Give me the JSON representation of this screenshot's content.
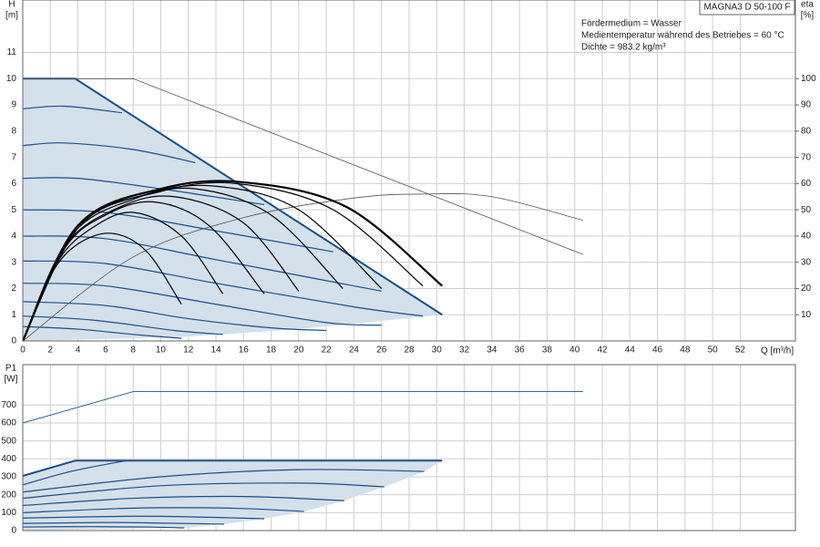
{
  "chart_data": [
    {
      "type": "line",
      "model": "MAGNA3 D 50-100 F",
      "notes": [
        "Fördermedium = Wasser",
        "Medientemperatur während des Betriebes = 60 °C",
        "Dichte = 983.2 kg/m³"
      ],
      "ylabel": "H",
      "yunit": "[m]",
      "y2label": "eta",
      "y2unit": "[%]",
      "xlabel": "Q [m³/h]",
      "xlim": [
        0,
        56
      ],
      "xticks": [
        0,
        2,
        4,
        6,
        8,
        10,
        12,
        14,
        16,
        18,
        20,
        22,
        24,
        26,
        28,
        30,
        32,
        34,
        36,
        38,
        40,
        42,
        44,
        46,
        48,
        50,
        52
      ],
      "ylim": [
        0,
        13
      ],
      "yticks": [
        0,
        1,
        2,
        3,
        4,
        5,
        6,
        7,
        8,
        9,
        10,
        11
      ],
      "y2lim": [
        0,
        130
      ],
      "y2ticks": [
        10,
        20,
        30,
        40,
        50,
        60,
        70,
        80,
        90,
        100
      ],
      "grid": true,
      "areas": [
        {
          "color": "#d4e0ea",
          "x": [
            0,
            3.8,
            30.4,
            20,
            11.5,
            0
          ],
          "values": [
            10,
            10,
            1,
            0.45,
            0.15,
            0
          ]
        }
      ],
      "series": [
        {
          "color": "#1a4f8a",
          "linewidth": 1.2,
          "smooth": true,
          "x": [
            0,
            3,
            7.2
          ],
          "values": [
            8.85,
            8.95,
            8.7
          ]
        },
        {
          "color": "#1a4f8a",
          "linewidth": 1.2,
          "smooth": true,
          "x": [
            0,
            3,
            8,
            12.5
          ],
          "values": [
            7.45,
            7.55,
            7.3,
            6.8
          ]
        },
        {
          "color": "#1a4f8a",
          "linewidth": 1.2,
          "smooth": true,
          "x": [
            0,
            4,
            10,
            17.5
          ],
          "values": [
            6.2,
            6.2,
            5.8,
            5.2
          ]
        },
        {
          "color": "#1a4f8a",
          "linewidth": 1.2,
          "smooth": true,
          "x": [
            0,
            6,
            14,
            22.5
          ],
          "values": [
            5.0,
            4.9,
            4.2,
            3.4
          ]
        },
        {
          "color": "#1a4f8a",
          "linewidth": 1.2,
          "smooth": true,
          "x": [
            0,
            6,
            14,
            26
          ],
          "values": [
            4.0,
            3.9,
            3.1,
            1.9
          ]
        },
        {
          "color": "#1a4f8a",
          "linewidth": 1.2,
          "smooth": true,
          "x": [
            0,
            6,
            14,
            24,
            29
          ],
          "values": [
            3.05,
            2.95,
            2.2,
            1.3,
            0.95
          ]
        },
        {
          "color": "#1a4f8a",
          "linewidth": 1.2,
          "smooth": true,
          "x": [
            0,
            6,
            14,
            22,
            26
          ],
          "values": [
            2.2,
            2.1,
            1.4,
            0.7,
            0.6
          ]
        },
        {
          "color": "#1a4f8a",
          "linewidth": 1.2,
          "smooth": true,
          "x": [
            0,
            6,
            12,
            18,
            22
          ],
          "values": [
            1.5,
            1.35,
            0.85,
            0.5,
            0.4
          ]
        },
        {
          "color": "#1a4f8a",
          "linewidth": 1.2,
          "smooth": true,
          "x": [
            0,
            5,
            11,
            14.5
          ],
          "values": [
            0.95,
            0.8,
            0.4,
            0.25
          ]
        },
        {
          "color": "#1a4f8a",
          "linewidth": 1.2,
          "smooth": true,
          "x": [
            0,
            4,
            8,
            11.5
          ],
          "values": [
            0.55,
            0.45,
            0.25,
            0.1
          ]
        },
        {
          "color": "#1a4f8a",
          "linewidth": 2,
          "smooth": false,
          "x": [
            0,
            3.8,
            30.4
          ],
          "values": [
            10,
            10,
            1
          ]
        },
        {
          "color": "#555555",
          "linewidth": 0.8,
          "smooth": false,
          "x": [
            0,
            8,
            40.6
          ],
          "values": [
            10,
            10,
            3.3
          ]
        },
        {
          "color": "#555555",
          "linewidth": 0.8,
          "smooth": true,
          "axis": "y2",
          "x": [
            0,
            8,
            16,
            24,
            29,
            34,
            40.6
          ],
          "values": [
            0,
            32,
            47,
            54.5,
            56,
            55,
            46
          ]
        },
        {
          "color": "#000000",
          "linewidth": 1.2,
          "smooth": true,
          "axis": "y2",
          "x": [
            0,
            2,
            4,
            6.5,
            9,
            11.5
          ],
          "values": [
            0,
            25,
            37,
            41,
            34,
            14
          ]
        },
        {
          "color": "#000000",
          "linewidth": 1.2,
          "smooth": true,
          "axis": "y2",
          "x": [
            0,
            2.5,
            5,
            8,
            11.5,
            14.5
          ],
          "values": [
            0,
            30,
            43,
            49,
            40,
            18
          ]
        },
        {
          "color": "#000000",
          "linewidth": 1.2,
          "smooth": true,
          "axis": "y2",
          "x": [
            0,
            3,
            6,
            9.5,
            13.5,
            17.5
          ],
          "values": [
            0,
            35,
            48,
            53,
            44,
            18
          ]
        },
        {
          "color": "#000000",
          "linewidth": 1.2,
          "smooth": true,
          "axis": "y2",
          "x": [
            0,
            3,
            7,
            11,
            16,
            20
          ],
          "values": [
            0,
            36,
            51,
            55,
            45,
            19
          ]
        },
        {
          "color": "#000000",
          "linewidth": 1.2,
          "smooth": true,
          "axis": "y2",
          "x": [
            0,
            3.5,
            8,
            12.5,
            18,
            23.2
          ],
          "values": [
            0,
            40,
            54,
            58,
            48,
            20
          ]
        },
        {
          "color": "#000000",
          "linewidth": 1.2,
          "smooth": true,
          "axis": "y2",
          "x": [
            0,
            4,
            9,
            14,
            20,
            26
          ],
          "values": [
            0,
            43,
            56,
            59,
            50,
            20
          ]
        },
        {
          "color": "#000000",
          "linewidth": 1.2,
          "smooth": true,
          "axis": "y2",
          "x": [
            0,
            4,
            10,
            15.5,
            22.5,
            29
          ],
          "values": [
            0,
            44,
            57,
            60,
            50,
            21
          ]
        },
        {
          "color": "#000000",
          "linewidth": 2.2,
          "smooth": true,
          "axis": "y2",
          "x": [
            0,
            4,
            10,
            16,
            23.5,
            30.4
          ],
          "values": [
            0,
            44,
            58,
            60.5,
            51,
            21
          ]
        }
      ]
    },
    {
      "type": "line",
      "ylabel": "P1",
      "yunit": "[W]",
      "xlim": [
        0,
        56
      ],
      "ylim": [
        0,
        925
      ],
      "yticks": [
        0,
        100,
        200,
        300,
        400,
        500,
        600,
        700
      ],
      "grid": true,
      "areas": [
        {
          "color": "#d4e0ea",
          "x": [
            0,
            3.8,
            30.4,
            29.1,
            26.2,
            23.3,
            20.4,
            17.5,
            14.6,
            11.7,
            0
          ],
          "values": [
            305,
            390,
            390,
            330,
            244,
            167,
            107,
            66,
            36,
            15,
            0
          ]
        }
      ],
      "series": [
        {
          "color": "#1a4f8a",
          "linewidth": 1.2,
          "smooth": true,
          "x": [
            0,
            3.5,
            7.5
          ],
          "values": [
            255,
            330,
            390
          ]
        },
        {
          "color": "#1a4f8a",
          "linewidth": 1.2,
          "smooth": true,
          "x": [
            0,
            10,
            20,
            29.1
          ],
          "values": [
            215,
            300,
            340,
            330
          ]
        },
        {
          "color": "#1a4f8a",
          "linewidth": 1.2,
          "smooth": true,
          "x": [
            0,
            10,
            20,
            26.2
          ],
          "values": [
            180,
            250,
            265,
            244
          ]
        },
        {
          "color": "#1a4f8a",
          "linewidth": 1.2,
          "smooth": true,
          "x": [
            0,
            8,
            16,
            23.3
          ],
          "values": [
            140,
            180,
            190,
            167
          ]
        },
        {
          "color": "#1a4f8a",
          "linewidth": 1.2,
          "smooth": true,
          "x": [
            0,
            8,
            15,
            20.4
          ],
          "values": [
            100,
            125,
            125,
            107
          ]
        },
        {
          "color": "#1a4f8a",
          "linewidth": 1.2,
          "smooth": true,
          "x": [
            0,
            8,
            13,
            17.5
          ],
          "values": [
            70,
            80,
            75,
            66
          ]
        },
        {
          "color": "#1a4f8a",
          "linewidth": 1.2,
          "smooth": true,
          "x": [
            0,
            6,
            10,
            14.6
          ],
          "values": [
            40,
            45,
            42,
            36
          ]
        },
        {
          "color": "#1a4f8a",
          "linewidth": 1.2,
          "smooth": true,
          "x": [
            0,
            5,
            9,
            11.7
          ],
          "values": [
            20,
            22,
            20,
            15
          ]
        },
        {
          "color": "#1a4f8a",
          "linewidth": 2,
          "smooth": false,
          "x": [
            0,
            3.8,
            30.4
          ],
          "values": [
            305,
            390,
            390
          ]
        },
        {
          "color": "#1a4f8a",
          "linewidth": 0.9,
          "smooth": false,
          "x": [
            0,
            8,
            40.6
          ],
          "values": [
            600,
            775,
            775
          ]
        }
      ]
    }
  ]
}
